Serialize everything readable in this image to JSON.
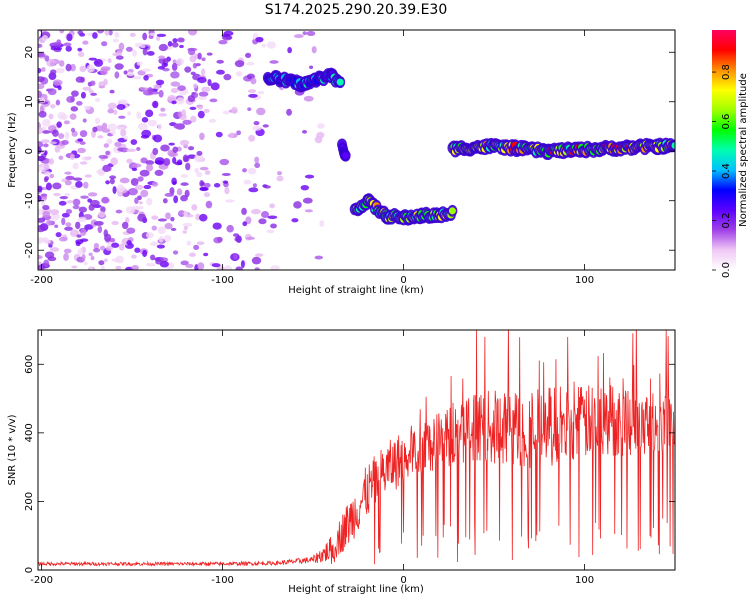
{
  "figure": {
    "title": "S174.2025.290.20.39.E30"
  },
  "chart_data": [
    {
      "type": "heatmap",
      "xlabel": "Height of straight line (km)",
      "ylabel": "Frequency (Hz)",
      "xlim": [
        -202,
        150
      ],
      "ylim": [
        -24,
        24.5
      ],
      "xticks": [
        -200,
        -100,
        0,
        100
      ],
      "yticks": [
        -20,
        -10,
        0,
        10,
        20
      ],
      "colorbar": {
        "label": "Normalized spectral amplitude",
        "range": [
          0,
          0.97
        ],
        "ticks": [
          "0.0",
          "0.2",
          "0.4",
          "0.6",
          "0.8"
        ],
        "tick_values": [
          0,
          0.2,
          0.4,
          0.6,
          0.8
        ],
        "colors": [
          "#ffffff",
          "#f0c8f5",
          "#a040e8",
          "#5a00ff",
          "#0000ff",
          "#00c0ff",
          "#00ffb0",
          "#00ff00",
          "#a0ff00",
          "#ffff00",
          "#ff9000",
          "#ff0000",
          "#ff0060"
        ]
      },
      "tracks": [
        {
          "x": [
            -75,
            -55,
            -40,
            -35
          ],
          "y": [
            15,
            13.5,
            15.5,
            13.5
          ],
          "amplitude": 0.5
        },
        {
          "x": [
            -34,
            -32
          ],
          "y": [
            1,
            -1
          ],
          "amplitude": 0.4
        },
        {
          "x": [
            -27,
            -20,
            -10,
            0,
            10,
            20,
            27
          ],
          "y": [
            -12,
            -10,
            -13,
            -13.5,
            -13,
            -13,
            -12.5
          ],
          "amplitude": 0.75
        },
        {
          "x": [
            27,
            50,
            80,
            110,
            140,
            150
          ],
          "y": [
            0.5,
            1,
            0,
            0.5,
            1,
            1
          ],
          "amplitude": 0.85
        }
      ],
      "background_noise": {
        "x": [
          -202,
          -60
        ],
        "amplitude": 0.15
      }
    },
    {
      "type": "line",
      "xlabel": "Height of straight line (km)",
      "ylabel": "SNR (10 * v/v)",
      "xlim": [
        -202,
        150
      ],
      "ylim": [
        0,
        700
      ],
      "xticks": [
        -200,
        -100,
        0,
        100
      ],
      "yticks": [
        0,
        200,
        400,
        600
      ],
      "line_color": "#ee2222",
      "envelope": {
        "x": [
          -202,
          -100,
          -70,
          -50,
          -40,
          -30,
          -20,
          -10,
          0,
          10,
          20,
          30,
          40,
          60,
          80,
          100,
          120,
          150
        ],
        "y": [
          18,
          18,
          20,
          30,
          60,
          140,
          230,
          290,
          330,
          360,
          380,
          400,
          420,
          410,
          420,
          430,
          440,
          440
        ],
        "spread": [
          5,
          5,
          6,
          10,
          40,
          70,
          80,
          80,
          80,
          80,
          85,
          90,
          100,
          120,
          120,
          110,
          110,
          100
        ]
      }
    }
  ]
}
